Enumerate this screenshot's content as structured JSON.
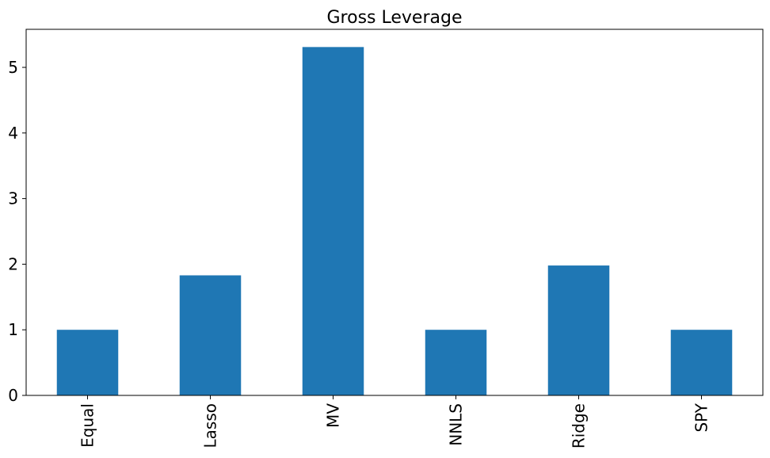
{
  "chart_data": {
    "type": "bar",
    "title": "Gross Leverage",
    "categories": [
      "Equal",
      "Lasso",
      "MV",
      "NNLS",
      "Ridge",
      "SPY"
    ],
    "values": [
      1,
      1.83,
      5.31,
      1,
      1.98,
      1
    ],
    "color": "#1f77b4",
    "ylim": [
      0,
      5.58
    ],
    "yticks": [
      0,
      1,
      2,
      3,
      4,
      5
    ],
    "grid": false
  }
}
